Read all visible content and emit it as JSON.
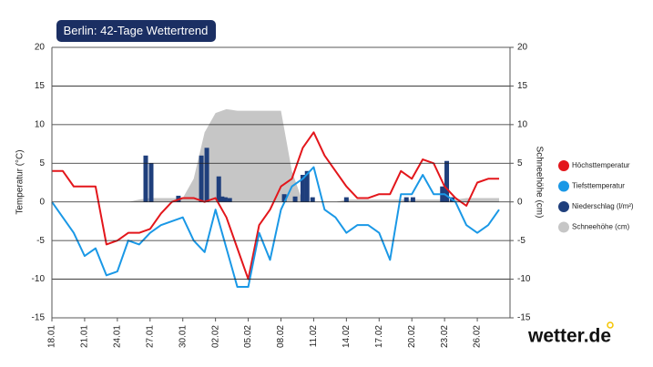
{
  "chart_data": {
    "type": "line",
    "title": "Berlin: 42-Tage Wettertrend",
    "y_label": "Temperatur (°C)",
    "y2_label": "Schneehöhe (cm)",
    "logo": "wetter.de",
    "x": [
      0,
      1,
      2,
      3,
      4,
      5,
      6,
      7,
      8,
      9,
      10,
      11,
      12,
      13,
      14,
      15,
      16,
      17,
      18,
      19,
      20,
      21,
      22,
      23,
      24,
      25,
      26,
      27,
      28,
      29,
      30,
      31,
      32,
      33,
      34,
      35,
      36,
      37,
      38,
      39,
      40,
      41
    ],
    "xlim": [
      0,
      42
    ],
    "xticks": [
      {
        "value": 0,
        "label": "18.01"
      },
      {
        "value": 3,
        "label": "21.01"
      },
      {
        "value": 6,
        "label": "24.01"
      },
      {
        "value": 9,
        "label": "27.01"
      },
      {
        "value": 12,
        "label": "30.01"
      },
      {
        "value": 15,
        "label": "02.02"
      },
      {
        "value": 18,
        "label": "05.02"
      },
      {
        "value": 21,
        "label": "08.02"
      },
      {
        "value": 24,
        "label": "11.02"
      },
      {
        "value": 27,
        "label": "14.02"
      },
      {
        "value": 30,
        "label": "17.02"
      },
      {
        "value": 33,
        "label": "20.02"
      },
      {
        "value": 36,
        "label": "23.02"
      },
      {
        "value": 39,
        "label": "26.02"
      }
    ],
    "ylim": [
      -15,
      20
    ],
    "yticks": [
      20,
      15,
      10,
      5,
      0,
      -5,
      -10,
      -15
    ],
    "y2lim": [
      -15,
      20
    ],
    "y2ticks": [
      20,
      15,
      10,
      5,
      0,
      -5,
      -10,
      -15
    ],
    "grid": true,
    "legend": "right",
    "series": [
      {
        "name": "Schneehöhe (cm)",
        "kind": "area",
        "axis": "y2",
        "color": "#c6c6c6",
        "values": [
          0,
          0,
          0,
          0,
          0,
          0,
          0,
          0,
          0.3,
          0.5,
          0.5,
          0.5,
          0.5,
          3,
          9,
          11.5,
          12,
          11.8,
          11.8,
          11.8,
          11.8,
          11.8,
          4,
          0,
          0,
          0,
          0,
          0.3,
          0.3,
          0.3,
          0.3,
          0.3,
          0.3,
          0.3,
          0.3,
          0.3,
          0.3,
          0.3,
          0.5,
          0.5,
          0.5,
          0.5
        ]
      },
      {
        "name": "Höchsttemperatur",
        "kind": "line",
        "color": "#e3161b",
        "values": [
          4,
          4,
          2,
          2,
          2,
          -5.5,
          -5,
          -4,
          -4,
          -3.5,
          -1.5,
          0,
          0.5,
          0.5,
          0,
          0.5,
          -2,
          -6,
          -10,
          -3,
          -1,
          2,
          3,
          7,
          9,
          6,
          4,
          2,
          0.5,
          0.5,
          1,
          1,
          4,
          3,
          5.5,
          5,
          2,
          0.5,
          -0.5,
          2.5,
          3,
          3
        ]
      },
      {
        "name": "Tiefsttemperatur",
        "kind": "line",
        "color": "#1a98e6",
        "values": [
          0,
          -2,
          -4,
          -7,
          -6,
          -9.5,
          -9,
          -5,
          -5.5,
          -4,
          -3,
          -2.5,
          -2,
          -5,
          -6.5,
          -1,
          -6,
          -11,
          -11,
          -4,
          -7.5,
          -1,
          2,
          3,
          4.5,
          -1,
          -2,
          -4,
          -3,
          -3,
          -4,
          -7.5,
          1,
          1,
          3.5,
          1,
          1,
          0,
          -3,
          -4,
          -3,
          -1
        ]
      },
      {
        "name": "Niederschlag (l/m²)",
        "kind": "bar",
        "color": "#1f3f7c",
        "x": [
          8.6,
          9.1,
          11.6,
          13.7,
          14.2,
          15.3,
          15.6,
          15.9,
          16.3,
          21.3,
          22.3,
          23.0,
          23.4,
          23.9,
          27.0,
          32.5,
          33.1,
          35.8,
          36.2,
          36.7
        ],
        "values": [
          6,
          5,
          0.8,
          6,
          7,
          3.3,
          0.7,
          0.6,
          0.5,
          1,
          0.7,
          3.5,
          4,
          0.6,
          0.6,
          0.6,
          0.6,
          2,
          5.3,
          0.6
        ]
      }
    ]
  }
}
